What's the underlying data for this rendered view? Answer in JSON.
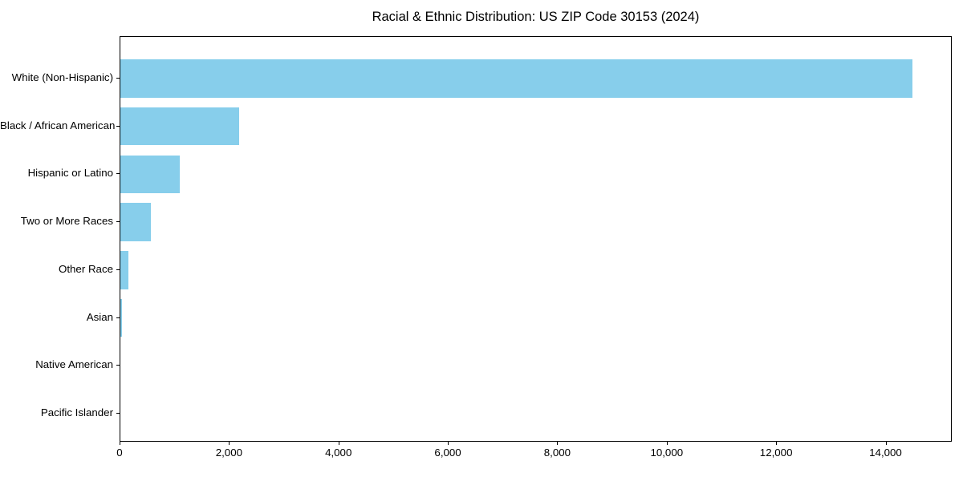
{
  "chart_data": {
    "type": "bar",
    "orientation": "horizontal",
    "title": "Racial & Ethnic Distribution: US ZIP Code 30153 (2024)",
    "categories": [
      "White (Non-Hispanic)",
      "Black / African American",
      "Hispanic or Latino",
      "Two or More Races",
      "Other Race",
      "Asian",
      "Native American",
      "Pacific Islander"
    ],
    "values": [
      14470,
      2175,
      1085,
      557,
      150,
      25,
      0,
      0
    ],
    "bar_color": "#87CEEB",
    "xlabel": "",
    "ylabel": "",
    "xlim": [
      0,
      15210
    ],
    "x_ticks": [
      0,
      2000,
      4000,
      6000,
      8000,
      10000,
      12000,
      14000
    ],
    "x_tick_labels": [
      "0",
      "2,000",
      "4,000",
      "6,000",
      "8,000",
      "10,000",
      "12,000",
      "14,000"
    ],
    "grid": false,
    "legend": false
  }
}
